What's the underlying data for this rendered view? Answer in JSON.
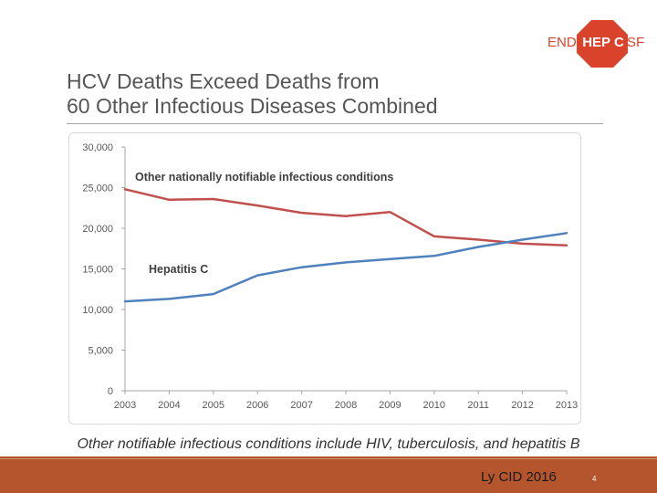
{
  "logo": {
    "left_text": "END",
    "middle_text": "HEP C",
    "right_text": "SF",
    "colors": {
      "text": "#d9432b",
      "octagon": "#d9432b"
    }
  },
  "slide": {
    "title_line1": "HCV Deaths Exceed Deaths from",
    "title_line2": "60 Other Infectious Diseases Combined",
    "caption": "Other notifiable infectious conditions include HIV, tuberculosis, and hepatitis B",
    "citation": "Ly CID 2016",
    "page_number": "4"
  },
  "chart_data": {
    "type": "line",
    "x": [
      "2003",
      "2004",
      "2005",
      "2006",
      "2007",
      "2008",
      "2009",
      "2010",
      "2011",
      "2012",
      "2013"
    ],
    "series": [
      {
        "name": "Other nationally notifiable infectious conditions",
        "color": "#c0504d",
        "values": [
          24800,
          23500,
          23600,
          22800,
          21900,
          21500,
          22000,
          19000,
          18600,
          18100,
          17900
        ]
      },
      {
        "name": "Hepatitis C",
        "color": "#4f81bd",
        "values": [
          11000,
          11300,
          11900,
          14200,
          15200,
          15800,
          16200,
          16600,
          17700,
          18600,
          19400
        ]
      }
    ],
    "yticks": [
      0,
      5000,
      10000,
      15000,
      20000,
      25000,
      30000
    ],
    "ytick_labels": [
      "0",
      "5,000",
      "10,000",
      "15,000",
      "20,000",
      "25,000",
      "30,000"
    ],
    "ylim": [
      0,
      30000
    ],
    "grid": false,
    "xlabel": "",
    "ylabel": ""
  }
}
